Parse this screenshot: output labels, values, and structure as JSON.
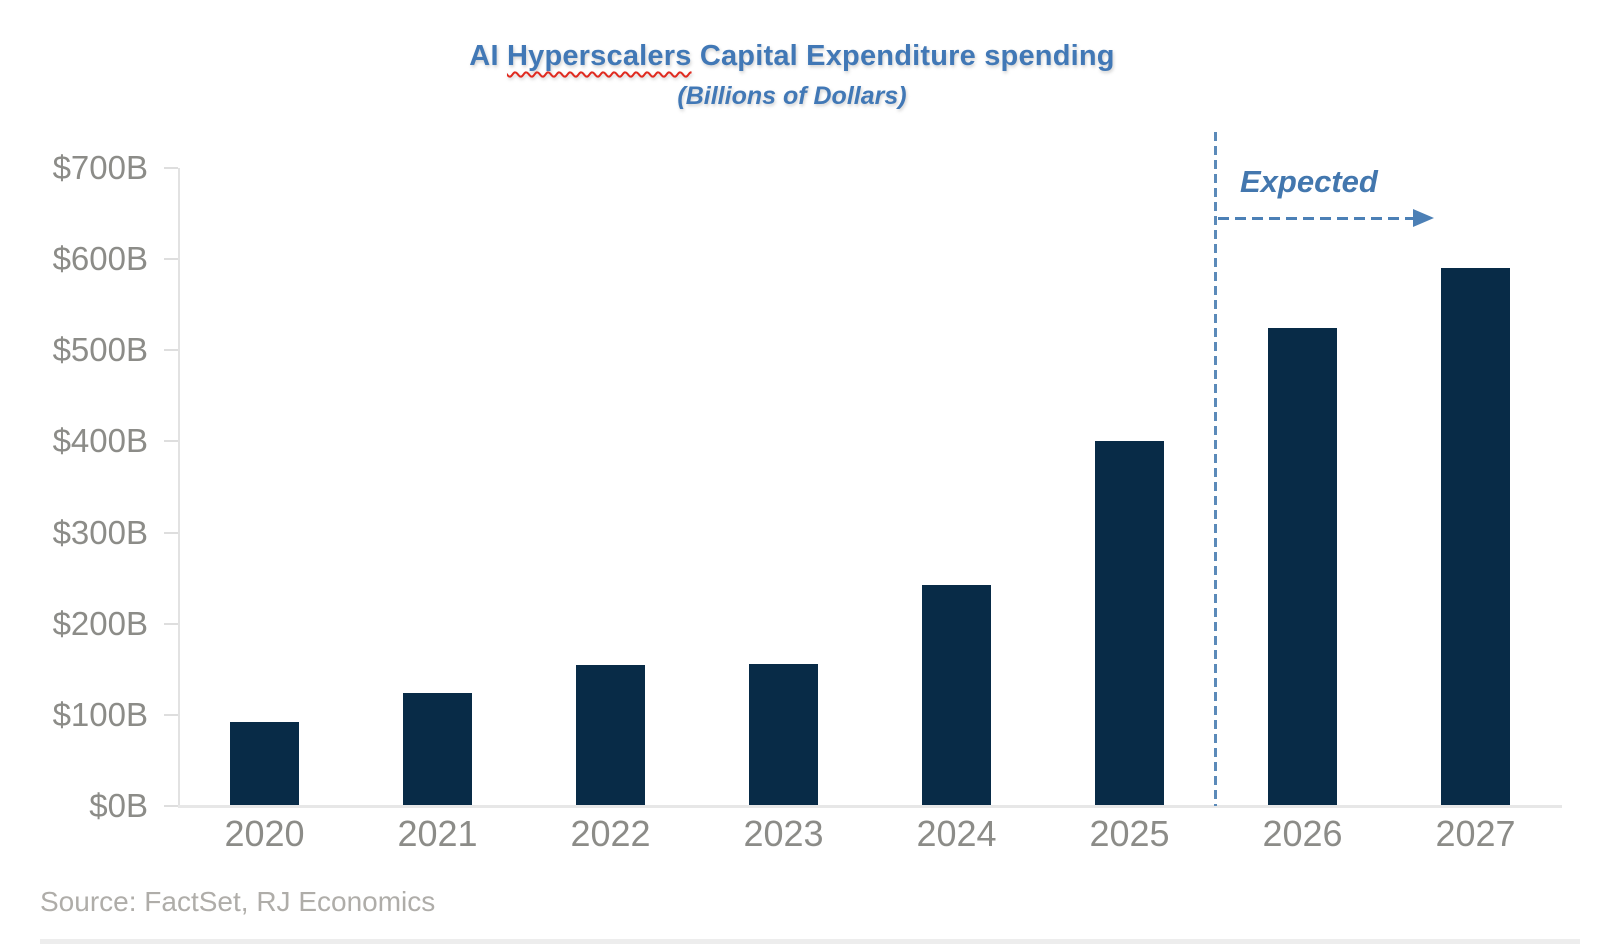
{
  "chart_data": {
    "type": "bar",
    "title_parts": {
      "prefix": "AI ",
      "misspelled_word": "Hyperscalers",
      "suffix": " Capital Expenditure spending"
    },
    "title": "AI Hyperscalers Capital Expenditure spending",
    "subtitle": "(Billions of Dollars)",
    "categories": [
      "2020",
      "2021",
      "2022",
      "2023",
      "2024",
      "2025",
      "2026",
      "2027"
    ],
    "values": [
      92,
      124,
      155,
      156,
      242,
      400,
      525,
      590
    ],
    "xlabel": "",
    "ylabel": "",
    "ylim": [
      0,
      700
    ],
    "ytick_step": 100,
    "ytick_labels": [
      "$0B",
      "$100B",
      "$200B",
      "$300B",
      "$400B",
      "$500B",
      "$600B",
      "$700B"
    ],
    "grid": "off",
    "legend": "none",
    "bar_color": "#082B47",
    "title_color": "#4178B6",
    "annotation": {
      "label": "Expected",
      "applies_to_categories": [
        "2026",
        "2027"
      ],
      "divider_after_category": "2025",
      "line_color": "#5B8AB9"
    }
  },
  "source_note": "Source: FactSet, RJ Economics"
}
